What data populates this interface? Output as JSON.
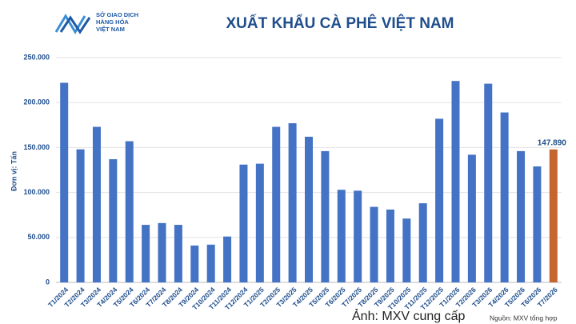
{
  "logo": [
    "SỞ GIAO DỊCH",
    "HÀNG HÓA",
    "VIỆT NAM"
  ],
  "caption": "Ảnh: MXV cung cấp",
  "chart_data": {
    "type": "bar",
    "title": "XUẤT KHẨU CÀ PHÊ VIỆT NAM",
    "y_label": "Đơn vị: Tấn",
    "source": "Nguồn: MXV tổng hợp",
    "categories": [
      "T1/2024",
      "T2/2024",
      "T3/2024",
      "T4/2024",
      "T5/2024",
      "T6/2024",
      "T7/2024",
      "T8/2024",
      "T9/2024",
      "T10/2024",
      "T11/2024",
      "T12/2024",
      "T1/2025",
      "T2/2025",
      "T3/2025",
      "T4/2025",
      "T5/2025",
      "T6/2025",
      "T7/2025",
      "T8/2025",
      "T9/2025",
      "T10/2025",
      "T11/2025",
      "T12/2025",
      "T1/2026",
      "T2/2026",
      "T3/2026",
      "T4/2026",
      "T5/2026",
      "T6/2026",
      "T7/2026"
    ],
    "values": [
      222000,
      148000,
      173000,
      137000,
      157000,
      64000,
      66000,
      64000,
      41000,
      42000,
      51000,
      131000,
      132000,
      173000,
      177000,
      162000,
      146000,
      103000,
      102000,
      84000,
      81000,
      71000,
      88000,
      182000,
      224000,
      142000,
      221000,
      189000,
      146000,
      129000,
      147890
    ],
    "value_labels": [
      null,
      null,
      null,
      null,
      null,
      null,
      null,
      null,
      null,
      null,
      null,
      null,
      null,
      null,
      null,
      null,
      null,
      null,
      null,
      null,
      null,
      null,
      null,
      null,
      null,
      null,
      null,
      null,
      null,
      null,
      "147.890"
    ],
    "colors": [
      "#4472c4",
      "#4472c4",
      "#4472c4",
      "#4472c4",
      "#4472c4",
      "#4472c4",
      "#4472c4",
      "#4472c4",
      "#4472c4",
      "#4472c4",
      "#4472c4",
      "#4472c4",
      "#4472c4",
      "#4472c4",
      "#4472c4",
      "#4472c4",
      "#4472c4",
      "#4472c4",
      "#4472c4",
      "#4472c4",
      "#4472c4",
      "#4472c4",
      "#4472c4",
      "#4472c4",
      "#4472c4",
      "#4472c4",
      "#4472c4",
      "#4472c4",
      "#4472c4",
      "#4472c4",
      "#c5652f"
    ],
    "ylim": [
      0,
      250000
    ],
    "yticks": [
      0,
      {
        "value": 50000,
        "label": "50.000"
      },
      {
        "value": 100000,
        "label": "100.000"
      },
      {
        "value": 150000,
        "label": "150.000"
      },
      {
        "value": 200000,
        "label": "200.000"
      },
      {
        "value": 250000,
        "label": "250.000"
      }
    ],
    "grid": true
  }
}
